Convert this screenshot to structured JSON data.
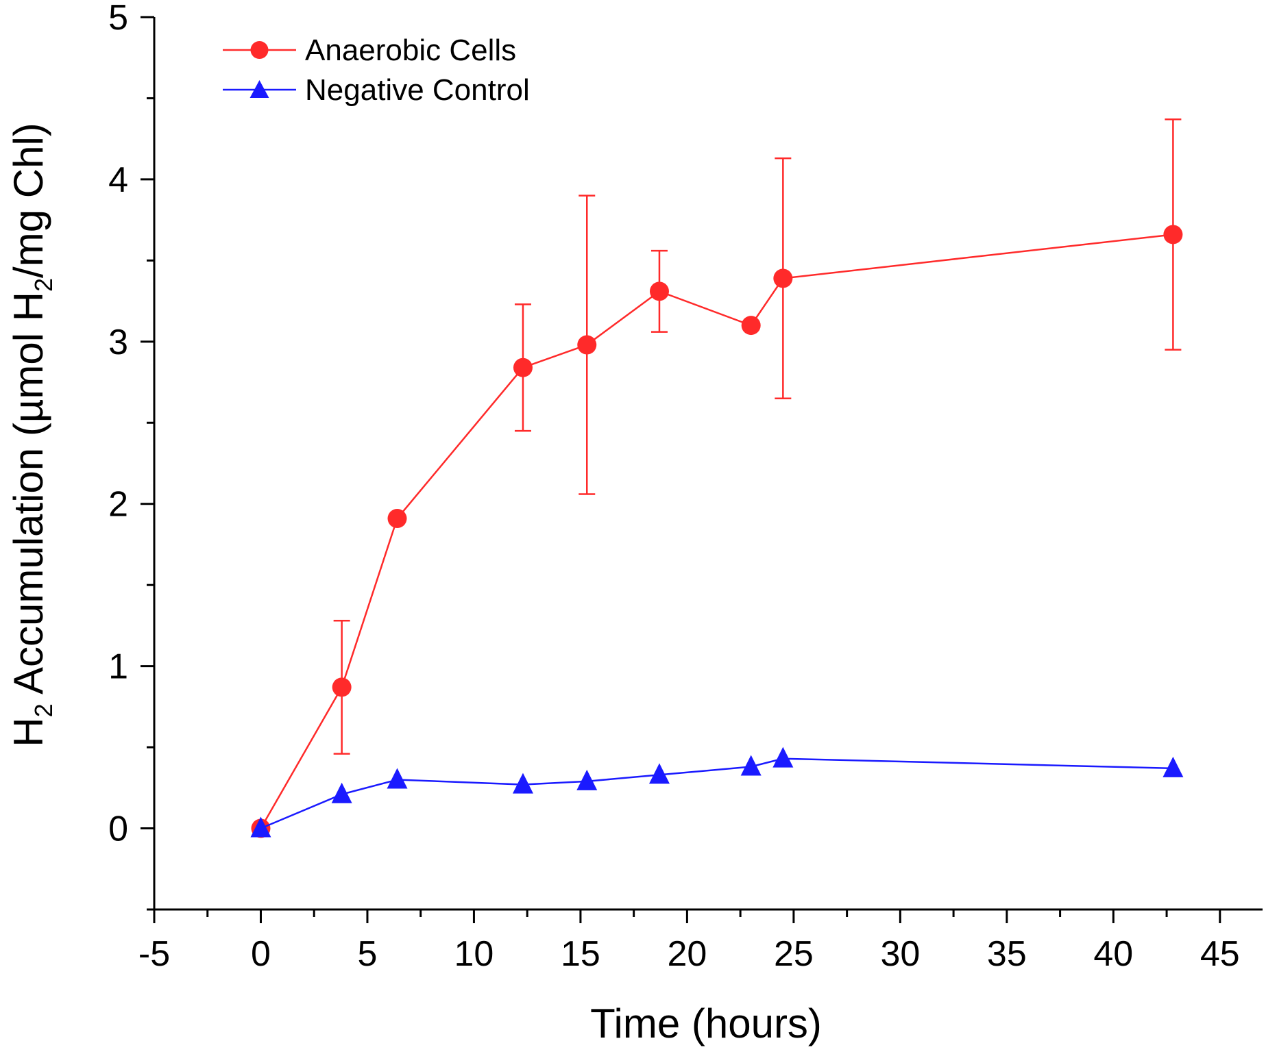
{
  "chart_data": {
    "type": "line",
    "title": "",
    "xlabel": "Time (hours)",
    "ylabel": {
      "prefix": "H",
      "prefix_sub": "2",
      "middle": " Accumulation (µmol H",
      "middle_sub": "2",
      "suffix": "/mg Chl)"
    },
    "xlim": [
      -5,
      47
    ],
    "ylim": [
      -0.5,
      5
    ],
    "x_ticks": [
      -5,
      0,
      5,
      10,
      15,
      20,
      25,
      30,
      35,
      40,
      45
    ],
    "x_tick_labels": [
      "-5",
      "0",
      "5",
      "10",
      "15",
      "20",
      "25",
      "30",
      "35",
      "40",
      "45"
    ],
    "y_ticks": [
      0,
      1,
      2,
      3,
      4,
      5
    ],
    "y_tick_labels": [
      "0",
      "1",
      "2",
      "3",
      "4",
      "5"
    ],
    "grid": false,
    "legend_position": "top-left",
    "series": [
      {
        "name": "Anaerobic Cells",
        "color": "#ff2a2a",
        "marker": "circle",
        "x": [
          0,
          3.8,
          6.4,
          12.3,
          15.3,
          18.7,
          23.0,
          24.5,
          42.8
        ],
        "y": [
          0,
          0.87,
          1.91,
          2.84,
          2.98,
          3.31,
          3.1,
          3.39,
          3.66
        ],
        "error": [
          null,
          0.41,
          null,
          0.39,
          0.92,
          0.25,
          null,
          0.74,
          0.71
        ]
      },
      {
        "name": "Negative Control",
        "color": "#1a1aff",
        "marker": "triangle",
        "x": [
          0,
          3.8,
          6.4,
          12.3,
          15.3,
          18.7,
          23.0,
          24.5,
          42.8
        ],
        "y": [
          0,
          0.21,
          0.3,
          0.27,
          0.29,
          0.33,
          0.38,
          0.43,
          0.37
        ],
        "error": [
          null,
          null,
          null,
          null,
          null,
          null,
          null,
          null,
          null
        ]
      }
    ]
  }
}
